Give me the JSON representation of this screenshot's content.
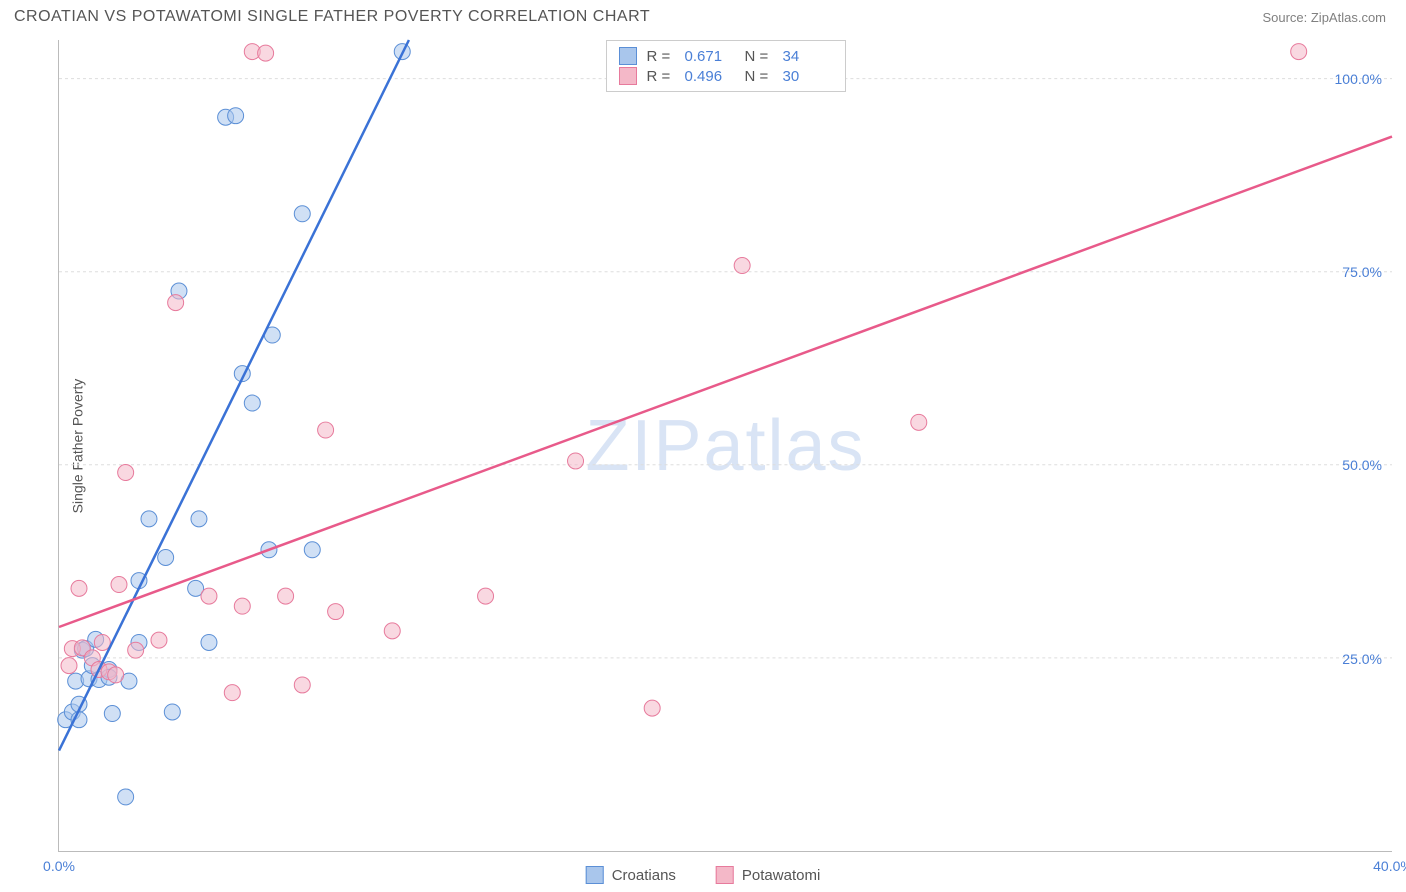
{
  "title": "CROATIAN VS POTAWATOMI SINGLE FATHER POVERTY CORRELATION CHART",
  "source": "Source: ZipAtlas.com",
  "watermark": "ZIPatlas",
  "watermark_color": "#d9e4f5",
  "chart": {
    "type": "scatter",
    "ylabel": "Single Father Poverty",
    "xlim": [
      0,
      40
    ],
    "ylim": [
      0,
      105
    ],
    "xticks": [
      {
        "v": 0,
        "label": "0.0%"
      },
      {
        "v": 40,
        "label": "40.0%"
      }
    ],
    "yticks": [
      {
        "v": 25,
        "label": "25.0%"
      },
      {
        "v": 50,
        "label": "50.0%"
      },
      {
        "v": 75,
        "label": "75.0%"
      },
      {
        "v": 100,
        "label": "100.0%"
      }
    ],
    "grid_color": "#dddddd",
    "axis_color": "#bbbbbb",
    "tick_label_color": "#4a7fd6",
    "background_color": "#ffffff",
    "marker_radius": 8,
    "marker_opacity": 0.55,
    "line_width": 2.5,
    "series": [
      {
        "name": "Croatians",
        "color_fill": "#a9c6ec",
        "color_stroke": "#5b8fd6",
        "line_color": "#3a72d6",
        "regression": {
          "x1": 0,
          "y1": 13,
          "x2": 10.5,
          "y2": 105
        },
        "points": [
          [
            0.2,
            17
          ],
          [
            0.4,
            18
          ],
          [
            0.5,
            22
          ],
          [
            0.6,
            19
          ],
          [
            0.6,
            17
          ],
          [
            0.7,
            26
          ],
          [
            0.8,
            26.2
          ],
          [
            0.9,
            22.3
          ],
          [
            1.0,
            24
          ],
          [
            1.1,
            27.4
          ],
          [
            1.2,
            22.2
          ],
          [
            1.5,
            23.5
          ],
          [
            1.5,
            22.5
          ],
          [
            1.6,
            17.8
          ],
          [
            2.0,
            7
          ],
          [
            2.1,
            22
          ],
          [
            2.4,
            35
          ],
          [
            2.4,
            27
          ],
          [
            2.7,
            43
          ],
          [
            3.2,
            38
          ],
          [
            3.4,
            18
          ],
          [
            3.6,
            72.5
          ],
          [
            4.1,
            34
          ],
          [
            4.2,
            43
          ],
          [
            4.5,
            27
          ],
          [
            5.0,
            95
          ],
          [
            5.3,
            95.2
          ],
          [
            5.5,
            61.8
          ],
          [
            5.8,
            58
          ],
          [
            6.3,
            39
          ],
          [
            6.4,
            66.8
          ],
          [
            7.3,
            82.5
          ],
          [
            7.6,
            39
          ],
          [
            10.3,
            103.5
          ]
        ]
      },
      {
        "name": "Potawatomi",
        "color_fill": "#f4b8c8",
        "color_stroke": "#e77a9c",
        "line_color": "#e85a8a",
        "regression": {
          "x1": 0,
          "y1": 29,
          "x2": 40,
          "y2": 92.5
        },
        "points": [
          [
            0.3,
            24
          ],
          [
            0.4,
            26.2
          ],
          [
            0.6,
            34
          ],
          [
            0.7,
            26.3
          ],
          [
            1.0,
            25
          ],
          [
            1.2,
            23.5
          ],
          [
            1.3,
            27
          ],
          [
            1.5,
            23.2
          ],
          [
            1.7,
            22.8
          ],
          [
            1.8,
            34.5
          ],
          [
            2.0,
            49
          ],
          [
            2.3,
            26
          ],
          [
            3.0,
            27.3
          ],
          [
            3.5,
            71
          ],
          [
            4.5,
            33
          ],
          [
            5.2,
            20.5
          ],
          [
            5.5,
            31.7
          ],
          [
            5.8,
            103.5
          ],
          [
            6.2,
            103.3
          ],
          [
            6.8,
            33
          ],
          [
            7.3,
            21.5
          ],
          [
            8.0,
            54.5
          ],
          [
            8.3,
            31
          ],
          [
            10.0,
            28.5
          ],
          [
            12.8,
            33
          ],
          [
            15.5,
            50.5
          ],
          [
            17.8,
            18.5
          ],
          [
            20.5,
            75.8
          ],
          [
            25.8,
            55.5
          ],
          [
            37.2,
            103.5
          ]
        ]
      }
    ],
    "stats_legend": [
      {
        "series": 0,
        "r": "0.671",
        "n": "34"
      },
      {
        "series": 1,
        "r": "0.496",
        "n": "30"
      }
    ],
    "stats_labels": {
      "r": "R  =",
      "n": "N  ="
    }
  },
  "footer_legend": [
    "Croatians",
    "Potawatomi"
  ]
}
